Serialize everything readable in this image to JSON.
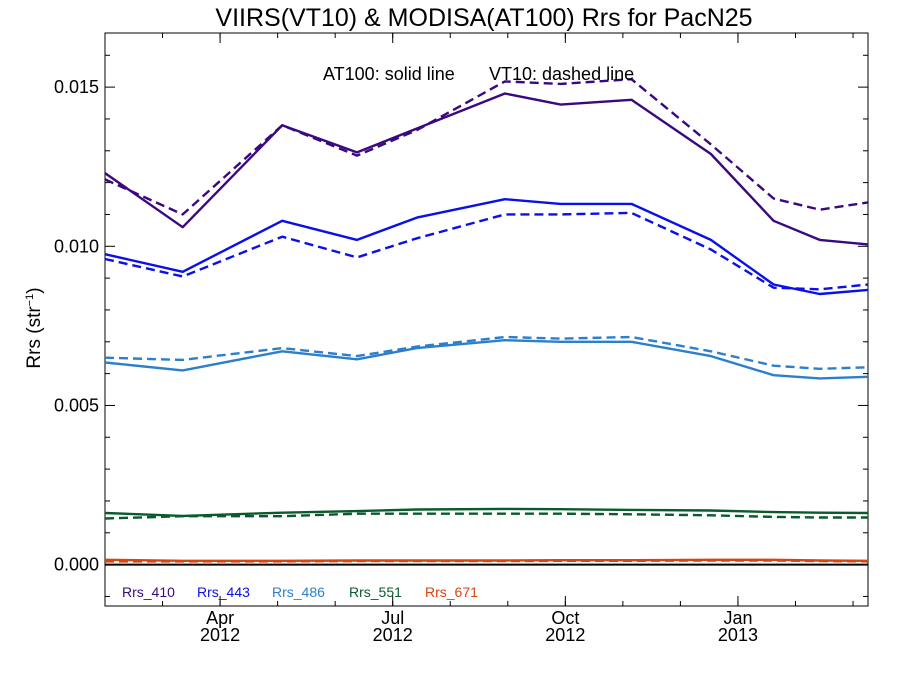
{
  "chart_data": {
    "type": "line",
    "title": "VIIRS(VT10) & MODISA(AT100)  Rrs for PacN25",
    "ylabel": "Rrs (str⁻¹)",
    "annotations": {
      "solid": "AT100: solid line",
      "dashed": "VT10: dashed line"
    },
    "x_months": [
      0,
      1.35,
      3.08,
      4.38,
      5.42,
      6.95,
      7.92,
      9.15,
      10.53,
      11.62,
      12.42,
      13.26
    ],
    "xlim": [
      0,
      13.26
    ],
    "x_ticks": [
      {
        "month": 2,
        "label": "Apr",
        "year": "2012"
      },
      {
        "month": 5,
        "label": "Jul",
        "year": "2012"
      },
      {
        "month": 8,
        "label": "Oct",
        "year": "2012"
      },
      {
        "month": 11,
        "label": "Jan",
        "year": "2013"
      }
    ],
    "ylim": [
      -0.0013,
      0.0167
    ],
    "y_ticks": [
      {
        "value": 0.0,
        "label": "0.000"
      },
      {
        "value": 0.005,
        "label": "0.005"
      },
      {
        "value": 0.01,
        "label": "0.010"
      },
      {
        "value": 0.015,
        "label": "0.015"
      }
    ],
    "zero_line": true,
    "series": [
      {
        "name": "Rrs_410",
        "color": "#3a0880",
        "solid": [
          0.0123,
          0.0106,
          0.0138,
          0.01295,
          0.0137,
          0.0148,
          0.01445,
          0.0146,
          0.0129,
          0.0108,
          0.0102,
          0.01006
        ],
        "dashed": [
          0.0121,
          0.011,
          0.0138,
          0.01285,
          0.01365,
          0.01518,
          0.0151,
          0.01525,
          0.0132,
          0.0115,
          0.01115,
          0.01138
        ]
      },
      {
        "name": "Rrs_443",
        "color": "#0a10e6",
        "solid": [
          0.00975,
          0.0092,
          0.0108,
          0.0102,
          0.0109,
          0.01148,
          0.01133,
          0.01133,
          0.0102,
          0.0088,
          0.0085,
          0.00863
        ],
        "dashed": [
          0.0096,
          0.00905,
          0.0103,
          0.00965,
          0.01025,
          0.011,
          0.011,
          0.01105,
          0.0099,
          0.0087,
          0.00865,
          0.0088
        ]
      },
      {
        "name": "Rrs_486",
        "color": "#2b7fcc",
        "solid": [
          0.00635,
          0.0061,
          0.0067,
          0.00645,
          0.0068,
          0.00705,
          0.007,
          0.007,
          0.00655,
          0.00595,
          0.00585,
          0.0059
        ],
        "dashed": [
          0.0065,
          0.00643,
          0.0068,
          0.00655,
          0.00685,
          0.00715,
          0.0071,
          0.00715,
          0.0067,
          0.00625,
          0.00615,
          0.0062
        ]
      },
      {
        "name": "Rrs_551",
        "color": "#0a5a2c",
        "solid": [
          0.00162,
          0.00153,
          0.00163,
          0.00168,
          0.00173,
          0.00175,
          0.00174,
          0.00172,
          0.0017,
          0.00165,
          0.00163,
          0.00162
        ],
        "dashed": [
          0.00145,
          0.00152,
          0.00152,
          0.0016,
          0.0016,
          0.0016,
          0.0016,
          0.00158,
          0.00155,
          0.0015,
          0.00148,
          0.00148
        ]
      },
      {
        "name": "Rrs_671",
        "color": "#d9440f",
        "solid": [
          0.00015,
          0.00012,
          0.00012,
          0.00013,
          0.00013,
          0.00013,
          0.00014,
          0.00014,
          0.00015,
          0.00015,
          0.00013,
          0.00012
        ],
        "dashed": [
          0.0001,
          0.0001,
          0.0001,
          0.00011,
          0.00011,
          0.00011,
          0.00012,
          0.00012,
          0.00013,
          0.00013,
          0.00011,
          0.0001
        ]
      }
    ]
  }
}
